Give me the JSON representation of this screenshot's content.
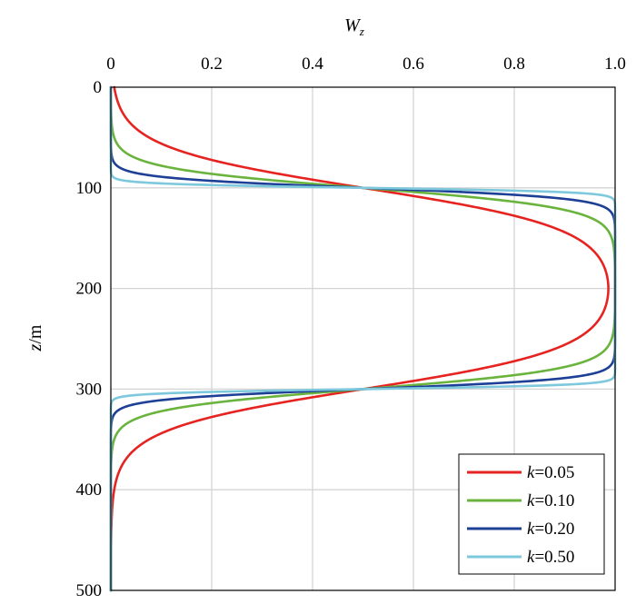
{
  "chart_data": {
    "type": "line",
    "xlabel": {
      "main": "W",
      "sub": "z"
    },
    "ylabel": {
      "main": "z",
      "suffix": "/m"
    },
    "xlim": [
      0,
      1
    ],
    "ylim": [
      0,
      500
    ],
    "y_inverted": true,
    "x_axis_position": "top",
    "x_ticks": [
      0,
      0.2,
      0.4,
      0.6,
      0.8,
      1.0
    ],
    "x_tick_labels": [
      "0",
      "0.2",
      "0.4",
      "0.6",
      "0.8",
      "1.0"
    ],
    "y_ticks": [
      0,
      100,
      200,
      300,
      400,
      500
    ],
    "y_tick_labels": [
      "0",
      "100",
      "200",
      "300",
      "400",
      "500"
    ],
    "grid": true,
    "legend_position": "bottom-right",
    "series": [
      {
        "name": "k=0.05",
        "label_prefix": "k",
        "label_value": "=0.05",
        "k": 0.05,
        "color": "#e52421"
      },
      {
        "name": "k=0.10",
        "label_prefix": "k",
        "label_value": "=0.10",
        "k": 0.1,
        "color": "#6ab43e"
      },
      {
        "name": "k=0.20",
        "label_prefix": "k",
        "label_value": "=0.20",
        "k": 0.2,
        "color": "#1d3f95"
      },
      {
        "name": "k=0.50",
        "label_prefix": "k",
        "label_value": "=0.50",
        "k": 0.5,
        "color": "#7dc8dd"
      }
    ],
    "curve_model": {
      "formula": "W = 1/(1+exp(-k(z-100))) - 1/(1+exp(-k(z-300)))",
      "z_lower": 100,
      "z_upper": 300
    }
  }
}
